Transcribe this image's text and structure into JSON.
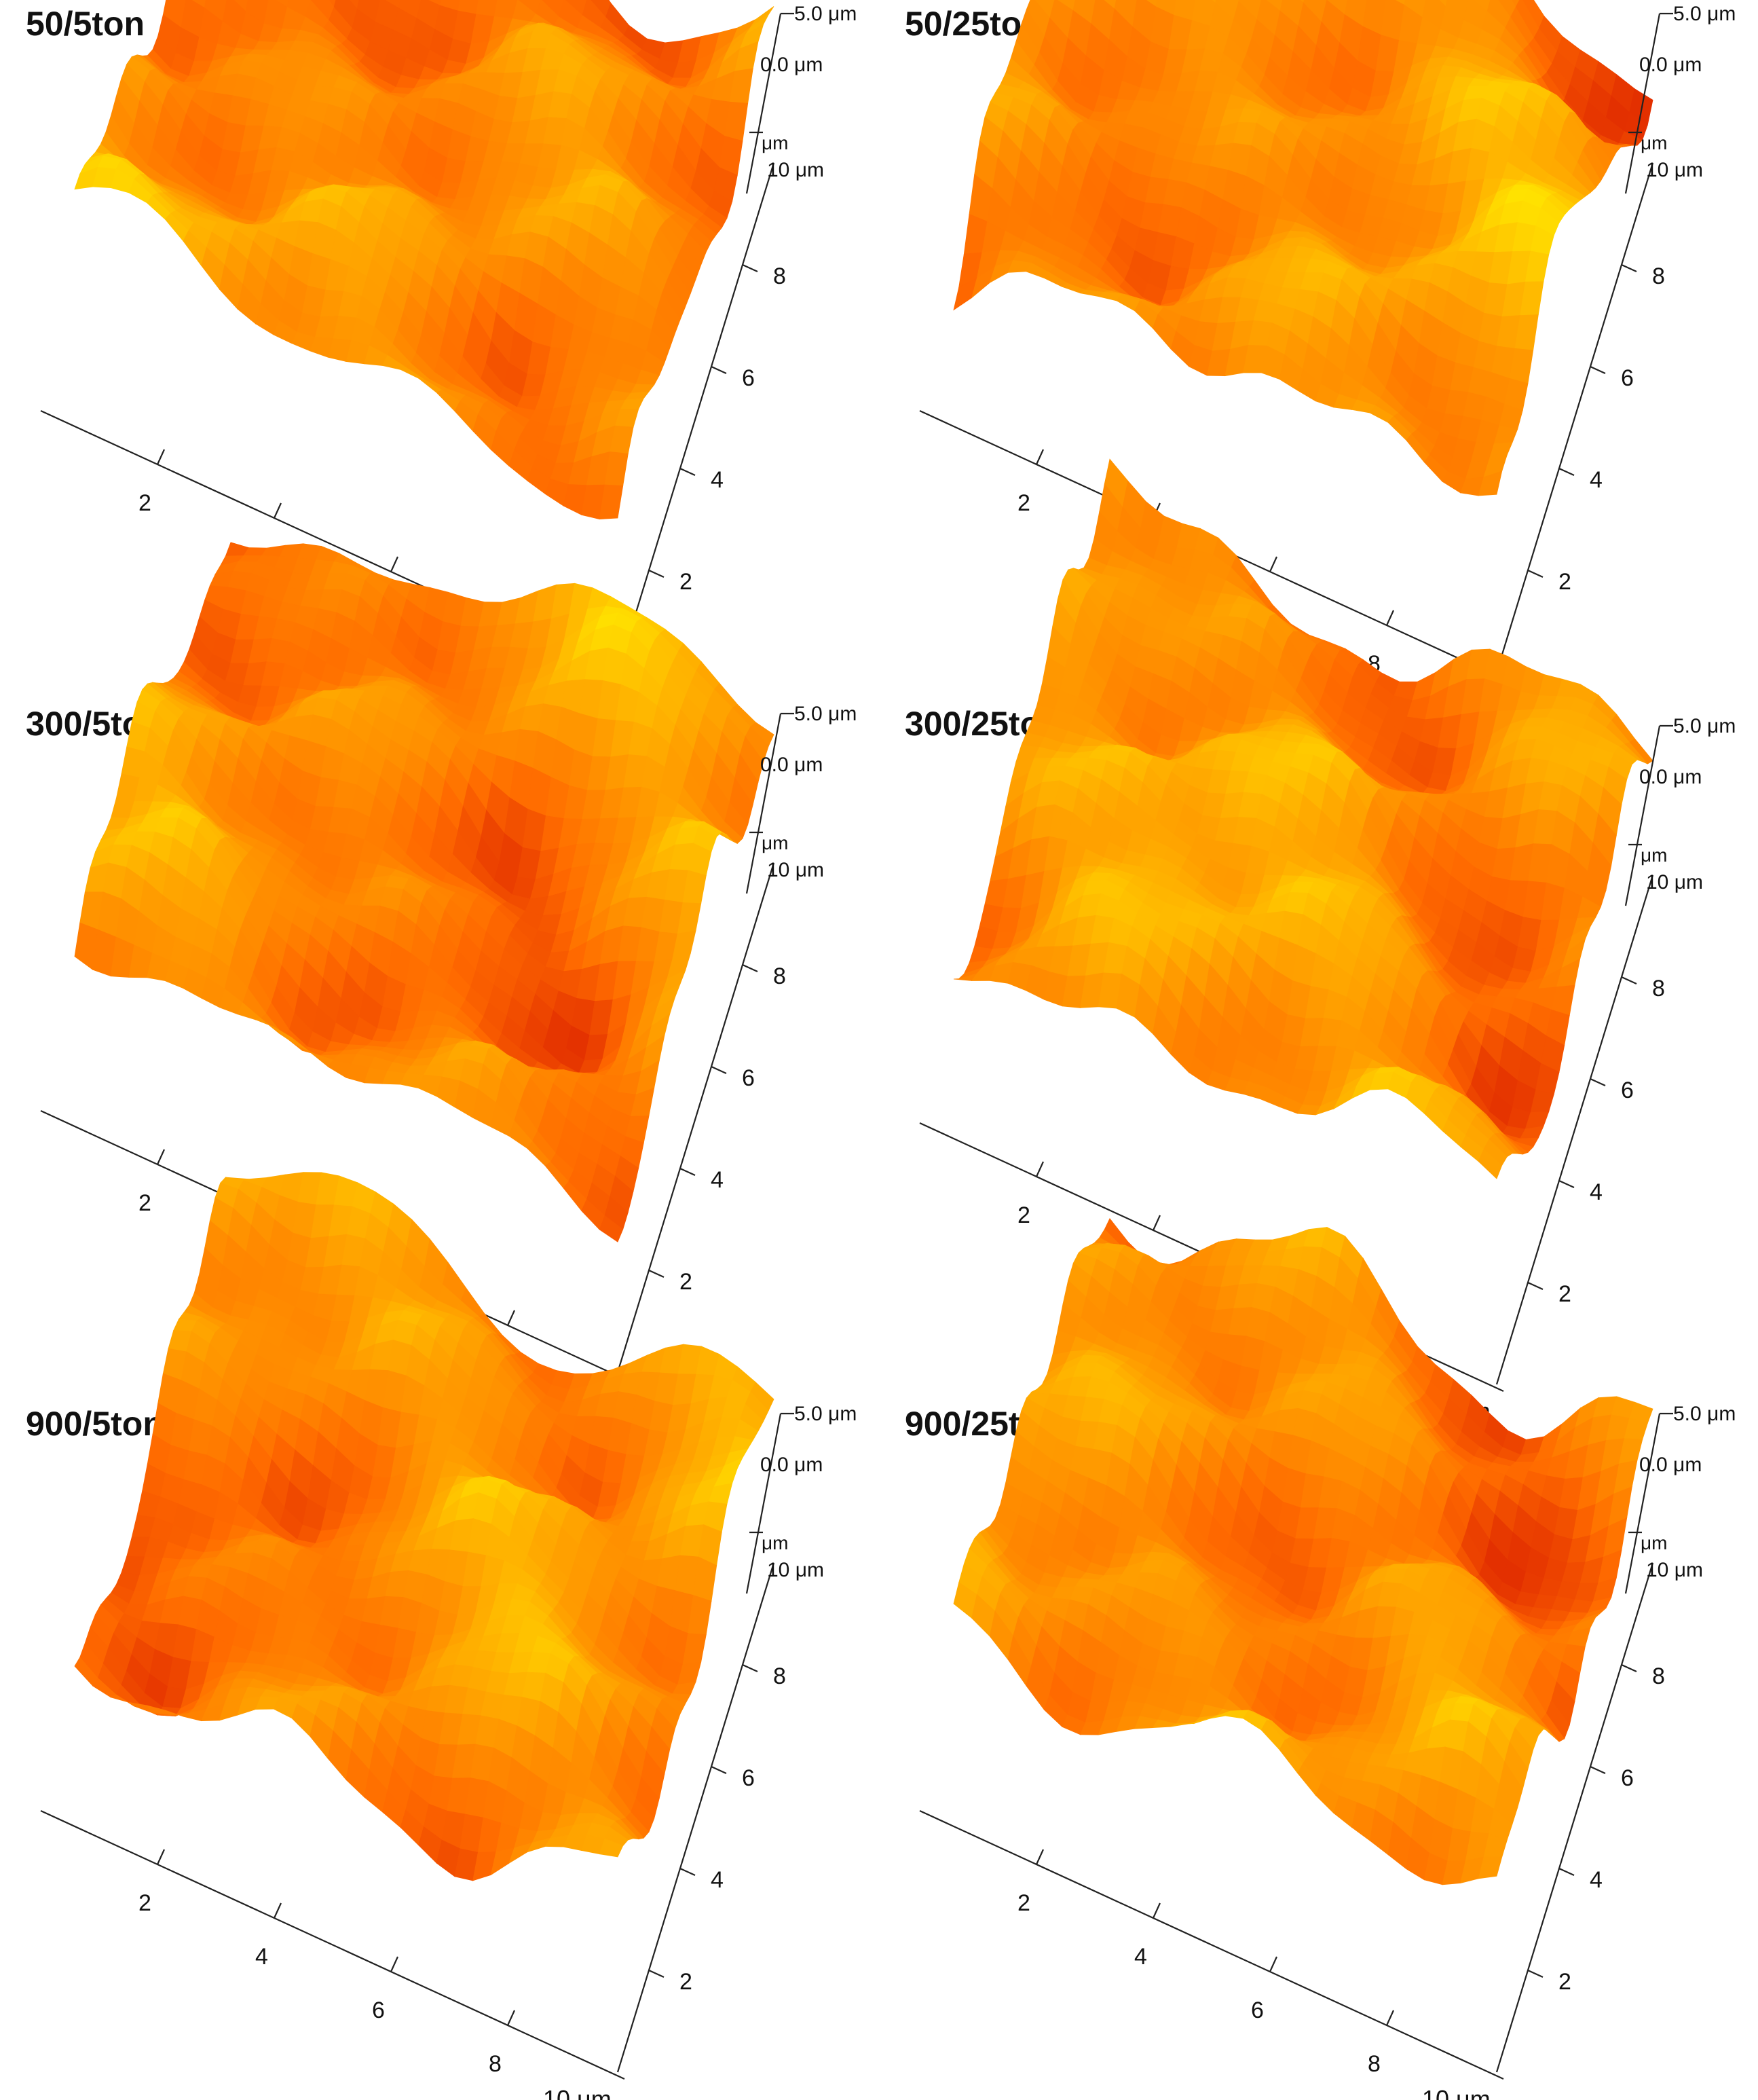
{
  "figure": {
    "panels": [
      {
        "title": "50/5ton",
        "variant": 0
      },
      {
        "title": "50/25ton",
        "variant": 1
      },
      {
        "title": "300/5ton",
        "variant": 2
      },
      {
        "title": "300/25ton",
        "variant": 3
      },
      {
        "title": "900/5ton",
        "variant": 4
      },
      {
        "title": "900/25ton",
        "variant": 5
      }
    ],
    "axes": {
      "z_top_label": "5.0 μm",
      "z_zero_label": "0.0 μm",
      "z_unit_label": "μm",
      "y_end_label": "10 μm",
      "x_end_label": "10 μm",
      "x_ticks": [
        "2",
        "4",
        "6",
        "8"
      ],
      "y_ticks": [
        "2",
        "4",
        "6",
        "8"
      ]
    },
    "colormap": [
      "#cc0000",
      "#ff6a00",
      "#ffb000",
      "#ffff00"
    ]
  }
}
